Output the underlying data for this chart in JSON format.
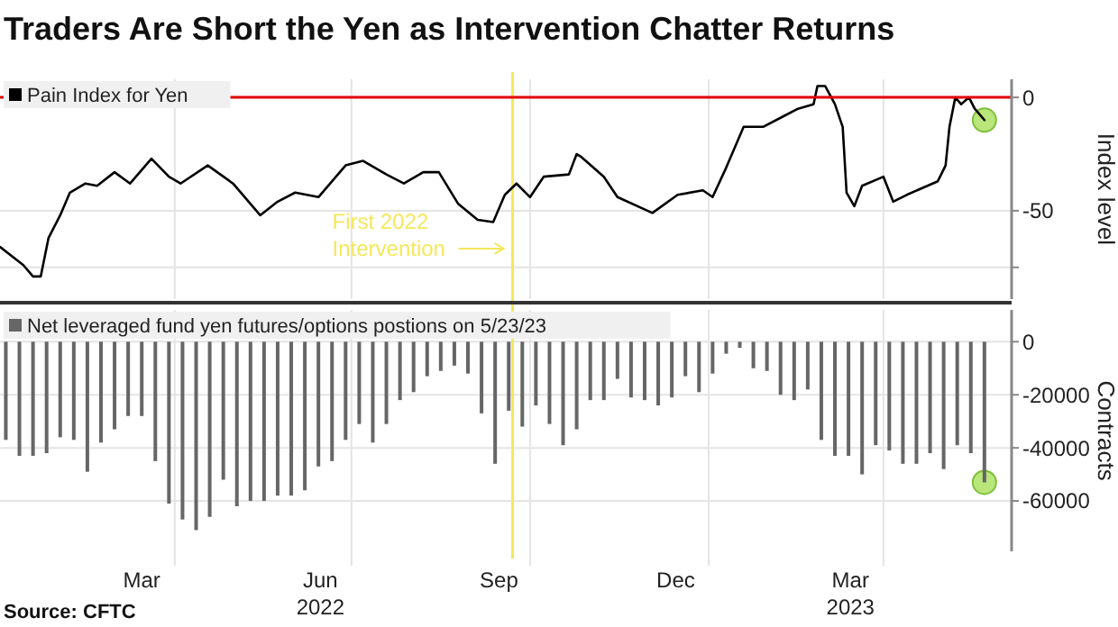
{
  "chart_data": [
    {
      "type": "line",
      "title": "Traders Are Short the Yen as Intervention Chatter Returns",
      "ylabel": "Index level",
      "legend": "top left",
      "grid": true,
      "tick_labels": "y",
      "xlim": [
        "2022-01-01",
        "2023-06-06"
      ],
      "ylim": [
        -89,
        8
      ],
      "xticks": [
        {
          "value": "2022-04-01",
          "label": null
        },
        {
          "value": "2022-07-01",
          "label": null
        },
        {
          "value": "2022-10-01",
          "label": null
        },
        {
          "value": "2023-01-01",
          "label": null
        },
        {
          "value": "2023-04-01",
          "label": null
        }
      ],
      "yticks": [
        0,
        -50,
        {
          "value": -75,
          "label": null
        }
      ],
      "ref_lines": [
        {
          "axis": "y",
          "value": 0,
          "color": "#e00000"
        },
        {
          "axis": "x",
          "value": "2022-09-22",
          "label": "First 2022 Intervention",
          "color": "#f5e85a"
        }
      ],
      "series": [
        {
          "name": "Pain Index for Yen",
          "color": "#000000",
          "x": [
            "2022-01-01",
            "2022-01-13",
            "2022-01-18",
            "2022-01-22",
            "2022-01-26",
            "2022-02-01",
            "2022-02-06",
            "2022-02-14",
            "2022-02-20",
            "2022-03-01",
            "2022-03-09",
            "2022-03-20",
            "2022-03-29",
            "2022-04-04",
            "2022-04-18",
            "2022-05-01",
            "2022-05-15",
            "2022-05-24",
            "2022-06-02",
            "2022-06-14",
            "2022-06-28",
            "2022-07-07",
            "2022-07-19",
            "2022-07-28",
            "2022-08-07",
            "2022-08-15",
            "2022-08-25",
            "2022-09-04",
            "2022-09-12",
            "2022-09-18",
            "2022-09-24",
            "2022-10-01",
            "2022-10-08",
            "2022-10-21",
            "2022-10-25",
            "2022-10-27",
            "2022-11-08",
            "2022-11-15",
            "2022-12-03",
            "2022-12-16",
            "2022-12-29",
            "2023-01-03",
            "2023-01-10",
            "2023-01-19",
            "2023-01-29",
            "2023-02-07",
            "2023-02-16",
            "2023-02-24",
            "2023-02-26",
            "2023-03-02",
            "2023-03-07",
            "2023-03-11",
            "2023-03-13",
            "2023-03-17",
            "2023-03-21",
            "2023-04-01",
            "2023-04-06",
            "2023-04-13",
            "2023-04-29",
            "2023-05-03",
            "2023-05-05",
            "2023-05-08",
            "2023-05-11",
            "2023-05-15",
            "2023-05-18",
            "2023-05-23"
          ],
          "values": [
            -66,
            -74,
            -79,
            -79,
            -62,
            -52,
            -42,
            -38,
            -39,
            -33,
            -38,
            -27,
            -35,
            -38,
            -30,
            -38,
            -52,
            -46,
            -42,
            -44,
            -30,
            -28,
            -34,
            -38,
            -33,
            -33,
            -47,
            -54,
            -55,
            -43,
            -38,
            -44,
            -35,
            -34,
            -25,
            -26,
            -35,
            -44,
            -51,
            -43,
            -41,
            -44,
            -31,
            -13,
            -13,
            -9,
            -5,
            -3,
            5,
            5,
            -3,
            -13,
            -42,
            -48,
            -39,
            -35,
            -46,
            -43,
            -37,
            -30,
            -13,
            0,
            -3,
            0,
            -5,
            -10
          ]
        },
        {
          "type": "scatter",
          "color": "#a6e05a",
          "marker": "circle",
          "x": [
            "2023-05-23"
          ],
          "values": [
            -10
          ]
        }
      ]
    },
    {
      "type": "bar",
      "legend": "top left",
      "grid": true,
      "ylabel": "Contracts",
      "annotations": [
        "Source: CFTC"
      ],
      "xlim": [
        "2022-01-01",
        "2023-06-06"
      ],
      "ylim": [
        -79000,
        12000
      ],
      "xticks": [
        {
          "value": "2022-03-15",
          "label": "Mar"
        },
        {
          "value": "2022-04-01",
          "label": null
        },
        {
          "value": "2022-06-15",
          "label": "Jun\n2022"
        },
        {
          "value": "2022-07-01",
          "label": null
        },
        {
          "value": "2022-09-15",
          "label": "Sep"
        },
        {
          "value": "2022-10-01",
          "label": null
        },
        {
          "value": "2022-12-15",
          "label": "Dec"
        },
        {
          "value": "2023-01-01",
          "label": null
        },
        {
          "value": "2023-03-15",
          "label": "Mar\n2023"
        },
        {
          "value": "2023-04-01",
          "label": null
        }
      ],
      "yticks": [
        0,
        -20000,
        -40000,
        -60000
      ],
      "ref_lines": [
        {
          "axis": "x",
          "value": "2022-09-22",
          "color": "#f5e85a"
        }
      ],
      "x": [
        "2022-01-04",
        "2022-01-11",
        "2022-01-18",
        "2022-01-25",
        "2022-02-01",
        "2022-02-08",
        "2022-02-15",
        "2022-02-22",
        "2022-03-01",
        "2022-03-08",
        "2022-03-15",
        "2022-03-22",
        "2022-03-29",
        "2022-04-05",
        "2022-04-12",
        "2022-04-19",
        "2022-04-26",
        "2022-05-03",
        "2022-05-10",
        "2022-05-17",
        "2022-05-24",
        "2022-05-31",
        "2022-06-07",
        "2022-06-14",
        "2022-06-21",
        "2022-06-28",
        "2022-07-05",
        "2022-07-12",
        "2022-07-19",
        "2022-07-26",
        "2022-08-02",
        "2022-08-09",
        "2022-08-16",
        "2022-08-23",
        "2022-08-30",
        "2022-09-06",
        "2022-09-13",
        "2022-09-20",
        "2022-09-27",
        "2022-10-04",
        "2022-10-11",
        "2022-10-18",
        "2022-10-25",
        "2022-11-01",
        "2022-11-08",
        "2022-11-15",
        "2022-11-22",
        "2022-11-29",
        "2022-12-06",
        "2022-12-13",
        "2022-12-20",
        "2022-12-27",
        "2023-01-03",
        "2023-01-10",
        "2023-01-17",
        "2023-01-24",
        "2023-01-31",
        "2023-02-07",
        "2023-02-14",
        "2023-02-21",
        "2023-02-28",
        "2023-03-07",
        "2023-03-14",
        "2023-03-21",
        "2023-03-28",
        "2023-04-04",
        "2023-04-11",
        "2023-04-18",
        "2023-04-25",
        "2023-05-02",
        "2023-05-09",
        "2023-05-16",
        "2023-05-23"
      ],
      "series": [
        {
          "name": "Net leveraged fund yen futures/options postions on 5/23/23",
          "color": "#666666",
          "values": [
            -37000,
            -43000,
            -43000,
            -42000,
            -36000,
            -37000,
            -49000,
            -38000,
            -33000,
            -28000,
            -28000,
            -45000,
            -61000,
            -67000,
            -71000,
            -66000,
            -52000,
            -62000,
            -60000,
            -60000,
            -58000,
            -58000,
            -56000,
            -47000,
            -45000,
            -37000,
            -31000,
            -38000,
            -31000,
            -22000,
            -19000,
            -13000,
            -11000,
            -9000,
            -12000,
            -27000,
            -46000,
            -26000,
            -32000,
            -24000,
            -31000,
            -39000,
            -33000,
            -22000,
            -22000,
            -14000,
            -21000,
            -22000,
            -24000,
            -21000,
            -13000,
            -19000,
            -12000,
            -4500,
            -2300,
            -10000,
            -11000,
            -20000,
            -22000,
            -18000,
            -37000,
            -43000,
            -43000,
            -50000,
            -39000,
            -41000,
            -46000,
            -46000,
            -42000,
            -48000,
            -39000,
            -42000,
            -53000
          ]
        },
        {
          "type": "scatter",
          "color": "#a6e05a",
          "marker": "circle",
          "x": [
            "2023-05-23"
          ],
          "values": [
            -53000
          ]
        }
      ]
    }
  ]
}
